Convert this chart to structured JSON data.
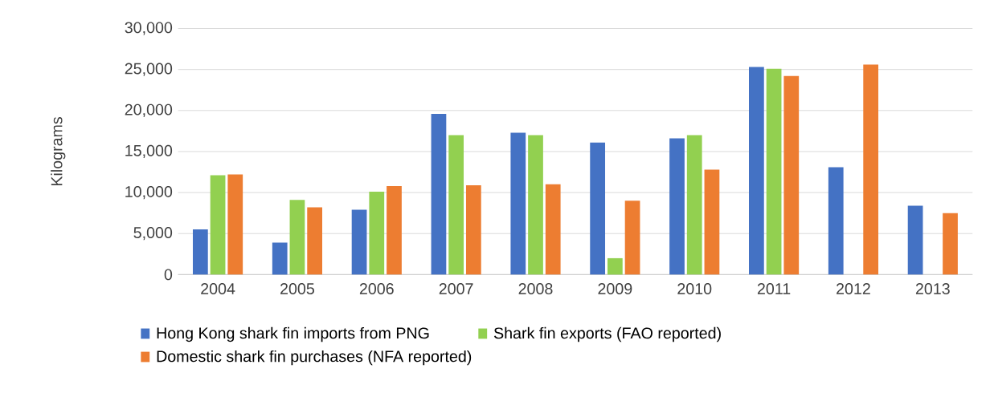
{
  "chart_data": {
    "type": "bar",
    "ylabel": "Kilograms",
    "categories": [
      "2004",
      "2005",
      "2006",
      "2007",
      "2008",
      "2009",
      "2010",
      "2011",
      "2012",
      "2013"
    ],
    "series": [
      {
        "name": "Hong Kong shark fin imports from PNG",
        "color": "#4472c4",
        "values": [
          5500,
          3900,
          7900,
          19600,
          17300,
          16100,
          16600,
          25300,
          13100,
          8400
        ]
      },
      {
        "name": "Shark fin exports (FAO reported)",
        "color": "#92d050",
        "values": [
          12100,
          9100,
          10100,
          17000,
          17000,
          2000,
          17000,
          25100,
          null,
          null
        ]
      },
      {
        "name": "Domestic shark fin purchases (NFA reported)",
        "color": "#ed7d31",
        "values": [
          12200,
          8200,
          10800,
          10900,
          11000,
          9000,
          12800,
          24200,
          25600,
          7500
        ]
      }
    ],
    "ylim": [
      0,
      30000
    ],
    "yticks": [
      0,
      {
        "value": 5000,
        "label": "5,000"
      },
      {
        "value": 10000,
        "label": "10,000"
      },
      {
        "value": 15000,
        "label": "15,000"
      },
      {
        "value": 20000,
        "label": "20,000"
      },
      {
        "value": 25000,
        "label": "25,000"
      },
      {
        "value": 30000,
        "label": "30,000"
      }
    ],
    "grid": "y",
    "legend": "bottom"
  }
}
